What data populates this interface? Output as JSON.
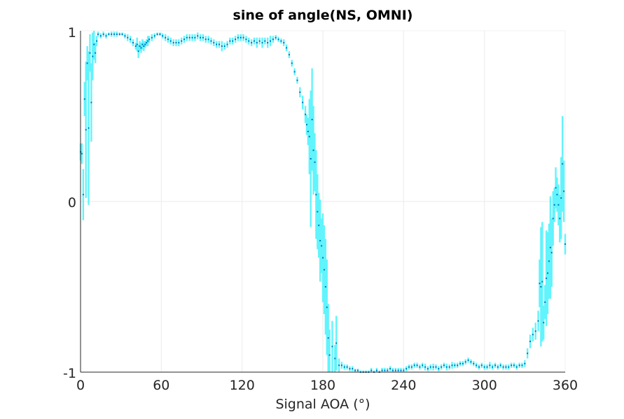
{
  "chart_data": {
    "type": "scatter",
    "title": "sine of angle(NS, OMNI)",
    "xlabel": "Signal AOA (°)",
    "ylabel": "",
    "xlim": [
      0,
      360
    ],
    "ylim": [
      -1,
      1
    ],
    "xticks": [
      "0",
      "60",
      "120",
      "180",
      "240",
      "300",
      "360"
    ],
    "yticks": [
      "-1",
      "0",
      "1"
    ],
    "grid": true,
    "colors": {
      "points": "#0072bd",
      "errorbars": "#61f4fc"
    },
    "points": [
      [
        0,
        0.29,
        0.05
      ],
      [
        1,
        0.28,
        0.06
      ],
      [
        2,
        0.04,
        0.15
      ],
      [
        3,
        0.6,
        0.1
      ],
      [
        4,
        0.42,
        0.4
      ],
      [
        5,
        0.81,
        0.1
      ],
      [
        6,
        0.43,
        0.45
      ],
      [
        7,
        0.87,
        0.11
      ],
      [
        8,
        0.58,
        0.23
      ],
      [
        9,
        0.85,
        0.14
      ],
      [
        10,
        0.92,
        0.09
      ],
      [
        11,
        0.87,
        0.06
      ],
      [
        12,
        0.94,
        0.03
      ],
      [
        13,
        0.98,
        0.015
      ],
      [
        15,
        0.97,
        0.015
      ],
      [
        17,
        0.98,
        0.015
      ],
      [
        19,
        0.97,
        0.015
      ],
      [
        21,
        0.98,
        0.01
      ],
      [
        23,
        0.98,
        0.015
      ],
      [
        25,
        0.98,
        0.015
      ],
      [
        27,
        0.98,
        0.015
      ],
      [
        29,
        0.98,
        0.01
      ],
      [
        31,
        0.98,
        0.01
      ],
      [
        33,
        0.97,
        0.015
      ],
      [
        35,
        0.96,
        0.02
      ],
      [
        37,
        0.95,
        0.02
      ],
      [
        39,
        0.93,
        0.02
      ],
      [
        41,
        0.91,
        0.02
      ],
      [
        42,
        0.92,
        0.04
      ],
      [
        43,
        0.88,
        0.04
      ],
      [
        44,
        0.91,
        0.03
      ],
      [
        45,
        0.9,
        0.03
      ],
      [
        46,
        0.92,
        0.03
      ],
      [
        47,
        0.91,
        0.03
      ],
      [
        48,
        0.92,
        0.02
      ],
      [
        49,
        0.93,
        0.02
      ],
      [
        50,
        0.94,
        0.03
      ],
      [
        51,
        0.95,
        0.02
      ],
      [
        53,
        0.96,
        0.02
      ],
      [
        55,
        0.97,
        0.015
      ],
      [
        57,
        0.98,
        0.01
      ],
      [
        59,
        0.98,
        0.01
      ],
      [
        61,
        0.97,
        0.015
      ],
      [
        63,
        0.96,
        0.02
      ],
      [
        65,
        0.95,
        0.02
      ],
      [
        67,
        0.94,
        0.02
      ],
      [
        69,
        0.93,
        0.02
      ],
      [
        71,
        0.93,
        0.02
      ],
      [
        73,
        0.93,
        0.02
      ],
      [
        75,
        0.94,
        0.02
      ],
      [
        77,
        0.95,
        0.02
      ],
      [
        79,
        0.96,
        0.02
      ],
      [
        81,
        0.96,
        0.02
      ],
      [
        83,
        0.96,
        0.02
      ],
      [
        85,
        0.96,
        0.02
      ],
      [
        87,
        0.97,
        0.02
      ],
      [
        89,
        0.96,
        0.02
      ],
      [
        91,
        0.96,
        0.02
      ],
      [
        93,
        0.95,
        0.02
      ],
      [
        95,
        0.95,
        0.02
      ],
      [
        97,
        0.94,
        0.02
      ],
      [
        99,
        0.93,
        0.02
      ],
      [
        101,
        0.92,
        0.02
      ],
      [
        103,
        0.92,
        0.02
      ],
      [
        105,
        0.91,
        0.03
      ],
      [
        107,
        0.91,
        0.02
      ],
      [
        109,
        0.92,
        0.02
      ],
      [
        111,
        0.94,
        0.02
      ],
      [
        113,
        0.94,
        0.02
      ],
      [
        115,
        0.95,
        0.02
      ],
      [
        117,
        0.96,
        0.02
      ],
      [
        119,
        0.96,
        0.02
      ],
      [
        121,
        0.96,
        0.02
      ],
      [
        123,
        0.95,
        0.02
      ],
      [
        125,
        0.94,
        0.02
      ],
      [
        127,
        0.93,
        0.02
      ],
      [
        129,
        0.94,
        0.02
      ],
      [
        131,
        0.93,
        0.03
      ],
      [
        133,
        0.94,
        0.02
      ],
      [
        135,
        0.93,
        0.03
      ],
      [
        137,
        0.94,
        0.02
      ],
      [
        139,
        0.93,
        0.03
      ],
      [
        141,
        0.94,
        0.03
      ],
      [
        143,
        0.95,
        0.02
      ],
      [
        145,
        0.96,
        0.015
      ],
      [
        147,
        0.95,
        0.015
      ],
      [
        149,
        0.94,
        0.015
      ],
      [
        151,
        0.93,
        0.02
      ],
      [
        153,
        0.9,
        0.02
      ],
      [
        155,
        0.86,
        0.02
      ],
      [
        157,
        0.81,
        0.02
      ],
      [
        159,
        0.76,
        0.02
      ],
      [
        161,
        0.71,
        0.02
      ],
      [
        163,
        0.64,
        0.03
      ],
      [
        165,
        0.58,
        0.04
      ],
      [
        167,
        0.51,
        0.05
      ],
      [
        168,
        0.45,
        0.06
      ],
      [
        169,
        0.41,
        0.08
      ],
      [
        170,
        0.38,
        0.22
      ],
      [
        171,
        0.25,
        0.4
      ],
      [
        172,
        0.48,
        0.3
      ],
      [
        173,
        0.3,
        0.26
      ],
      [
        174,
        0.23,
        0.17
      ],
      [
        175,
        0.04,
        0.26
      ],
      [
        176,
        -0.06,
        0.22
      ],
      [
        177,
        -0.14,
        0.19
      ],
      [
        178,
        -0.23,
        0.24
      ],
      [
        179,
        -0.26,
        0.16
      ],
      [
        180,
        -0.33,
        0.26
      ],
      [
        181,
        -0.4,
        0.26
      ],
      [
        182,
        -0.5,
        0.28
      ],
      [
        183,
        -0.62,
        0.28
      ],
      [
        184,
        -0.8,
        0.2
      ],
      [
        185,
        -0.9,
        0.15
      ],
      [
        187,
        -0.85,
        0.15
      ],
      [
        189,
        -0.92,
        0.08
      ],
      [
        190,
        -0.83,
        0.16
      ],
      [
        192,
        -0.96,
        0.04
      ],
      [
        194,
        -0.96,
        0.02
      ],
      [
        196,
        -0.97,
        0.015
      ],
      [
        198,
        -0.97,
        0.015
      ],
      [
        200,
        -0.98,
        0.015
      ],
      [
        202,
        -0.98,
        0.015
      ],
      [
        204,
        -0.99,
        0.01
      ],
      [
        206,
        -0.99,
        0.01
      ],
      [
        208,
        -1.0,
        0.01
      ],
      [
        210,
        -1.0,
        0.01
      ],
      [
        212,
        -1.0,
        0.01
      ],
      [
        214,
        -1.0,
        0.01
      ],
      [
        216,
        -0.99,
        0.015
      ],
      [
        218,
        -1.0,
        0.01
      ],
      [
        220,
        -0.99,
        0.015
      ],
      [
        222,
        -1.0,
        0.01
      ],
      [
        224,
        -0.99,
        0.015
      ],
      [
        226,
        -0.99,
        0.015
      ],
      [
        228,
        -0.99,
        0.015
      ],
      [
        230,
        -0.98,
        0.015
      ],
      [
        232,
        -0.99,
        0.015
      ],
      [
        234,
        -0.99,
        0.015
      ],
      [
        236,
        -0.99,
        0.015
      ],
      [
        238,
        -0.99,
        0.015
      ],
      [
        240,
        -0.99,
        0.015
      ],
      [
        242,
        -0.98,
        0.015
      ],
      [
        244,
        -0.97,
        0.015
      ],
      [
        246,
        -0.97,
        0.015
      ],
      [
        248,
        -0.96,
        0.015
      ],
      [
        250,
        -0.96,
        0.015
      ],
      [
        252,
        -0.97,
        0.015
      ],
      [
        254,
        -0.96,
        0.015
      ],
      [
        256,
        -0.97,
        0.02
      ],
      [
        258,
        -0.98,
        0.015
      ],
      [
        260,
        -0.97,
        0.015
      ],
      [
        262,
        -0.97,
        0.02
      ],
      [
        264,
        -0.97,
        0.015
      ],
      [
        266,
        -0.98,
        0.015
      ],
      [
        268,
        -0.97,
        0.015
      ],
      [
        270,
        -0.96,
        0.015
      ],
      [
        272,
        -0.97,
        0.02
      ],
      [
        274,
        -0.97,
        0.015
      ],
      [
        276,
        -0.96,
        0.02
      ],
      [
        278,
        -0.96,
        0.015
      ],
      [
        280,
        -0.96,
        0.015
      ],
      [
        282,
        -0.95,
        0.015
      ],
      [
        284,
        -0.95,
        0.015
      ],
      [
        286,
        -0.94,
        0.015
      ],
      [
        288,
        -0.93,
        0.015
      ],
      [
        290,
        -0.94,
        0.015
      ],
      [
        292,
        -0.95,
        0.015
      ],
      [
        294,
        -0.96,
        0.015
      ],
      [
        296,
        -0.97,
        0.015
      ],
      [
        298,
        -0.96,
        0.015
      ],
      [
        300,
        -0.97,
        0.015
      ],
      [
        302,
        -0.97,
        0.015
      ],
      [
        304,
        -0.96,
        0.02
      ],
      [
        306,
        -0.97,
        0.015
      ],
      [
        308,
        -0.96,
        0.015
      ],
      [
        310,
        -0.97,
        0.015
      ],
      [
        312,
        -0.96,
        0.015
      ],
      [
        314,
        -0.97,
        0.015
      ],
      [
        316,
        -0.97,
        0.015
      ],
      [
        318,
        -0.97,
        0.015
      ],
      [
        320,
        -0.96,
        0.015
      ],
      [
        322,
        -0.96,
        0.015
      ],
      [
        324,
        -0.97,
        0.015
      ],
      [
        326,
        -0.96,
        0.015
      ],
      [
        328,
        -0.96,
        0.015
      ],
      [
        330,
        -0.95,
        0.02
      ],
      [
        332,
        -0.89,
        0.03
      ],
      [
        334,
        -0.82,
        0.04
      ],
      [
        336,
        -0.78,
        0.04
      ],
      [
        338,
        -0.76,
        0.05
      ],
      [
        340,
        -0.7,
        0.06
      ],
      [
        341,
        -0.48,
        0.14
      ],
      [
        342,
        -0.5,
        0.35
      ],
      [
        343,
        -0.47,
        0.35
      ],
      [
        344,
        -0.71,
        0.1
      ],
      [
        345,
        -0.59,
        0.1
      ],
      [
        346,
        -0.45,
        0.28
      ],
      [
        347,
        -0.42,
        0.24
      ],
      [
        348,
        -0.35,
        0.22
      ],
      [
        349,
        -0.27,
        0.3
      ],
      [
        350,
        -0.3,
        0.2
      ],
      [
        351,
        -0.1,
        0.16
      ],
      [
        352,
        -0.02,
        0.1
      ],
      [
        353,
        0.08,
        0.12
      ],
      [
        354,
        0.04,
        0.1
      ],
      [
        355,
        -0.02,
        0.12
      ],
      [
        356,
        -0.1,
        0.14
      ],
      [
        357,
        0.02,
        0.24
      ],
      [
        358,
        0.22,
        0.28
      ],
      [
        359,
        0.06,
        0.18
      ],
      [
        360,
        -0.25,
        0.06
      ]
    ]
  }
}
